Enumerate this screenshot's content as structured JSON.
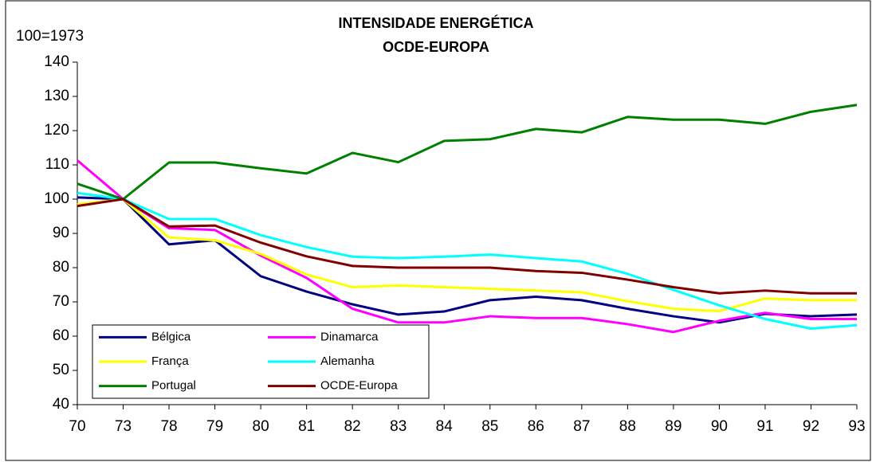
{
  "chart_data": {
    "type": "line",
    "title": "INTENSIDADE ENERGÉTICA",
    "subtitle": "OCDE-EUROPA",
    "y_label": "100=1973",
    "categories": [
      "70",
      "73",
      "78",
      "79",
      "80",
      "81",
      "82",
      "83",
      "84",
      "85",
      "86",
      "87",
      "88",
      "89",
      "90",
      "91",
      "92",
      "93"
    ],
    "series": [
      {
        "name": "Bélgica",
        "color": "#000080",
        "values": [
          100.5,
          100,
          86.8,
          88,
          77.5,
          73,
          69.3,
          66.3,
          67.2,
          70.5,
          71.5,
          70.5,
          68,
          65.8,
          64,
          66.5,
          65.8,
          66.3
        ]
      },
      {
        "name": "Dinamarca",
        "color": "#ff00ff",
        "values": [
          111.3,
          100,
          91.5,
          91,
          83.5,
          77,
          68,
          64,
          64,
          65.8,
          65.3,
          65.3,
          63.5,
          61.2,
          64.5,
          66.8,
          65,
          65
        ]
      },
      {
        "name": "França",
        "color": "#ffff00",
        "values": [
          98.5,
          100,
          88.8,
          88,
          84,
          78,
          74.3,
          74.8,
          74.3,
          73.8,
          73.3,
          72.8,
          70.2,
          68,
          67.3,
          71,
          70.5,
          70.5
        ]
      },
      {
        "name": "Alemanha",
        "color": "#00ffff",
        "values": [
          101.8,
          100,
          94.2,
          94.2,
          89.5,
          86,
          83.2,
          82.8,
          83.2,
          83.8,
          82.8,
          81.8,
          78.2,
          73.5,
          69,
          65,
          62.2,
          63.2
        ]
      },
      {
        "name": "Portugal",
        "color": "#008000",
        "values": [
          104.5,
          100,
          110.7,
          110.7,
          109,
          107.5,
          113.5,
          110.8,
          117,
          117.5,
          120.5,
          119.5,
          124,
          123.2,
          123.2,
          122,
          125.5,
          127.5
        ]
      },
      {
        "name": "OCDE-Europa",
        "color": "#800000",
        "values": [
          98,
          100,
          92,
          92.3,
          87.3,
          83.3,
          80.5,
          80,
          80,
          80,
          79,
          78.5,
          76.5,
          74.3,
          72.5,
          73.3,
          72.5,
          72.5
        ]
      }
    ],
    "ylim": [
      40,
      140
    ],
    "yticks": [
      40,
      50,
      60,
      70,
      80,
      90,
      100,
      110,
      120,
      130,
      140
    ],
    "grid": false,
    "legend": "lower-left"
  }
}
